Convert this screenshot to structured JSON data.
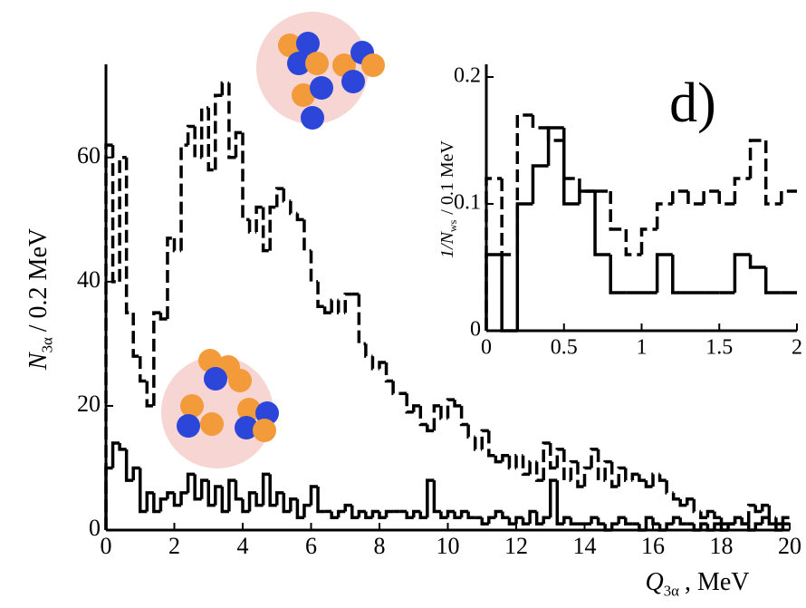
{
  "chart_data": [
    {
      "type": "histogram",
      "y_label": {
        "symbol": "N",
        "subscript": "3α",
        "unit": "/  0.2 MeV"
      },
      "x_label": {
        "symbol": "Q",
        "subscript": "3α",
        "unit": ", MeV"
      },
      "bins": [
        0,
        0.2,
        0.4,
        0.6,
        0.8,
        1,
        1.2,
        1.4,
        1.6,
        1.8,
        2,
        2.2,
        2.4,
        2.6,
        2.8,
        3,
        3.2,
        3.4,
        3.6,
        3.8,
        4,
        4.2,
        4.4,
        4.6,
        4.8,
        5,
        5.2,
        5.4,
        5.6,
        5.8,
        6,
        6.2,
        6.4,
        6.6,
        6.8,
        7,
        7.2,
        7.4,
        7.6,
        7.8,
        8,
        8.2,
        8.4,
        8.6,
        8.8,
        9,
        9.2,
        9.4,
        9.6,
        9.8,
        10,
        10.2,
        10.4,
        10.6,
        10.8,
        11,
        11.2,
        11.4,
        11.6,
        11.8,
        12,
        12.2,
        12.4,
        12.6,
        12.8,
        13,
        13.2,
        13.4,
        13.6,
        13.8,
        14,
        14.2,
        14.4,
        14.6,
        14.8,
        15,
        15.2,
        15.4,
        15.6,
        15.8,
        16,
        16.2,
        16.4,
        16.6,
        16.8,
        17,
        17.2,
        17.4,
        17.6,
        17.8,
        18,
        18.2,
        18.4,
        18.6,
        18.8,
        19,
        19.2,
        19.4,
        19.6,
        19.8,
        20
      ],
      "series": [
        {
          "color": "#000000",
          "line_style": "dashed",
          "values": [
            62,
            40,
            60,
            35,
            28,
            24,
            20,
            35,
            34,
            47,
            45,
            62,
            65,
            60,
            68,
            58,
            70,
            72,
            60,
            64,
            50,
            48,
            52,
            45,
            52,
            55,
            53,
            51,
            50,
            45,
            40,
            36,
            35,
            37,
            35,
            38,
            38,
            30,
            28,
            26,
            27,
            24,
            22,
            22,
            19,
            20,
            17,
            16,
            20,
            18,
            21,
            20,
            17,
            15,
            13,
            16,
            12,
            11,
            12,
            10,
            12,
            9,
            11,
            8,
            14,
            10,
            13,
            8,
            11,
            7,
            10,
            13,
            8,
            11,
            7,
            10,
            8,
            9,
            8,
            7,
            9,
            8,
            6,
            5,
            4,
            5,
            3,
            2,
            3,
            2,
            1,
            1,
            2,
            1,
            4,
            3,
            4,
            2,
            1,
            2
          ]
        },
        {
          "color": "#000000",
          "line_style": "solid",
          "values": [
            10,
            14,
            13,
            8,
            10,
            3,
            6,
            3,
            5,
            6,
            4,
            6,
            9,
            5,
            8,
            4,
            7,
            3,
            8,
            5,
            3,
            6,
            4,
            9,
            4,
            6,
            3,
            5,
            2,
            4,
            7,
            3,
            3,
            2,
            3,
            4,
            2,
            3,
            2,
            3,
            2,
            3,
            3,
            3,
            2,
            3,
            2,
            8,
            3,
            2,
            3,
            2,
            3,
            2,
            2,
            1,
            2,
            3,
            2,
            1,
            2,
            1,
            3,
            1,
            2,
            8,
            1,
            2,
            1,
            1,
            1,
            2,
            1,
            0,
            1,
            2,
            1,
            1,
            0,
            2,
            1,
            0,
            1,
            2,
            1,
            1,
            0,
            1,
            0,
            1,
            0,
            1,
            2,
            1,
            0,
            1,
            2,
            1,
            0,
            1
          ]
        }
      ],
      "xlim": [
        0,
        20
      ],
      "ylim": [
        0,
        75
      ],
      "xticks": [
        0,
        2,
        4,
        6,
        8,
        10,
        12,
        14,
        16,
        18,
        20
      ],
      "yticks": [
        0,
        20,
        40,
        60
      ]
    },
    {
      "type": "histogram",
      "annotation": "d)",
      "y_label": {
        "symbol": "1/N",
        "subscript": "ws",
        "unit": "/  0.1 MeV"
      },
      "bins": [
        0,
        0.1,
        0.2,
        0.3,
        0.4,
        0.5,
        0.6,
        0.7,
        0.8,
        0.9,
        1,
        1.1,
        1.2,
        1.3,
        1.4,
        1.5,
        1.6,
        1.7,
        1.8,
        1.9,
        2
      ],
      "series": [
        {
          "color": "#000000",
          "line_style": "dashed",
          "values": [
            0.12,
            0.06,
            0.17,
            0.16,
            0.15,
            0.12,
            0.11,
            0.11,
            0.08,
            0.06,
            0.08,
            0.1,
            0.11,
            0.1,
            0.11,
            0.1,
            0.12,
            0.15,
            0.1,
            0.11
          ]
        },
        {
          "color": "#000000",
          "line_style": "solid",
          "values": [
            0.06,
            0,
            0.1,
            0.13,
            0.16,
            0.1,
            0.11,
            0.06,
            0.03,
            0.03,
            0.03,
            0.06,
            0.03,
            0.03,
            0.03,
            0.03,
            0.06,
            0.05,
            0.03,
            0.03
          ]
        }
      ],
      "xlim": [
        0,
        2
      ],
      "ylim": [
        0,
        0.21
      ],
      "xticks": [
        0,
        0.5,
        1,
        1.5,
        2
      ],
      "yticks": [
        0,
        0.1,
        0.2
      ]
    }
  ]
}
